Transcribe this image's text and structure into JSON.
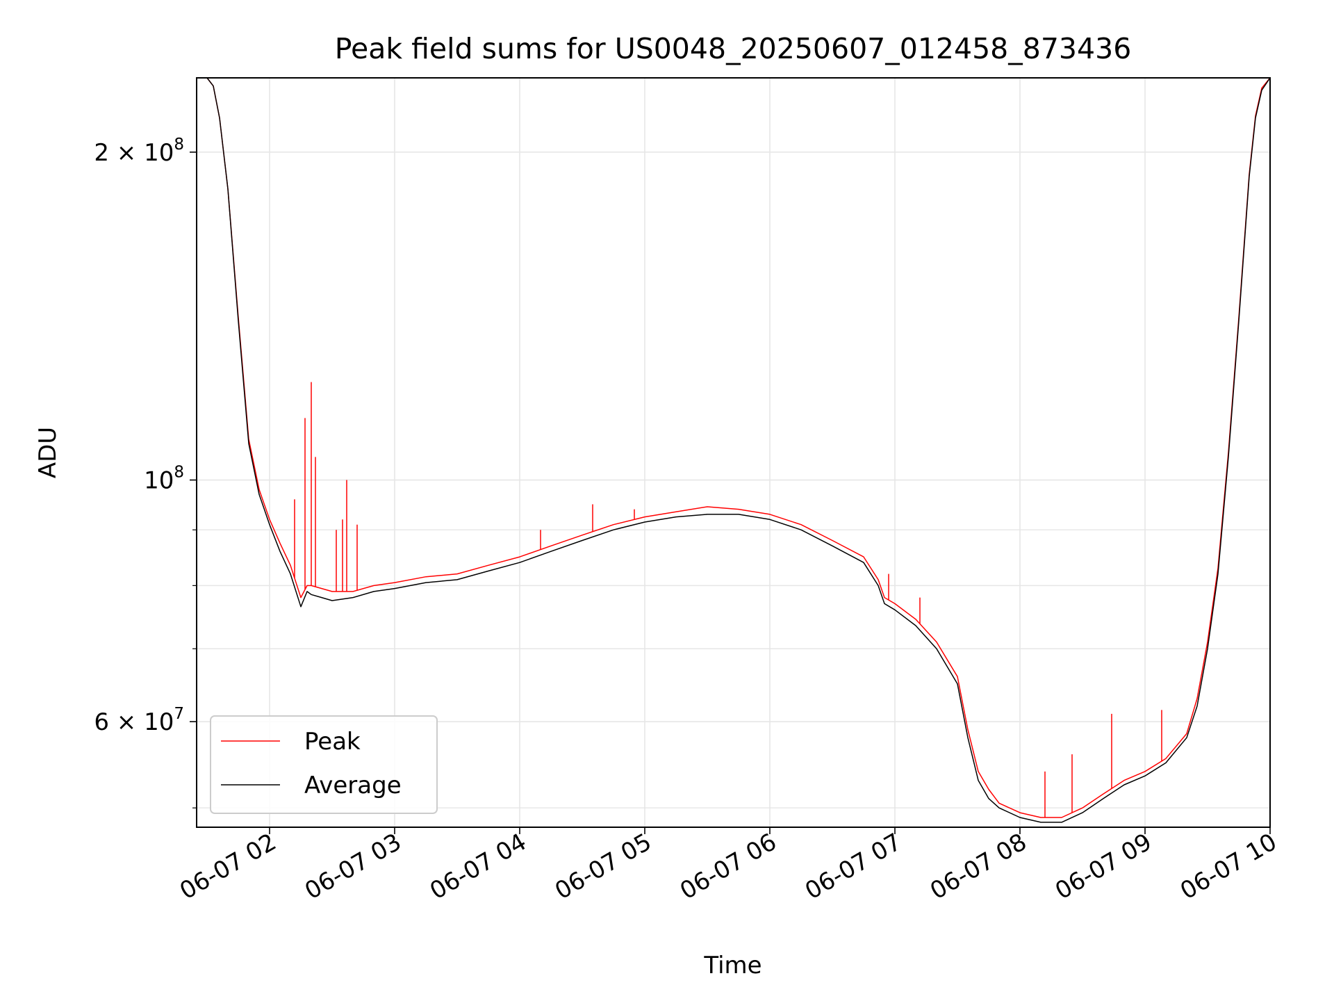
{
  "chart_data": {
    "type": "line",
    "title": "Peak field sums for US0048_20250607_012458_873436",
    "xlabel": "Time",
    "ylabel": "ADU",
    "x_axis": {
      "kind": "time",
      "tick_labels": [
        "06-07 02",
        "06-07 03",
        "06-07 04",
        "06-07 05",
        "06-07 06",
        "06-07 07",
        "06-07 08",
        "06-07 09",
        "06-07 10"
      ],
      "xlim": [
        "2025-06-07 01:25",
        "2025-06-07 10:00"
      ]
    },
    "y_axis": {
      "scale": "log",
      "major_tick_labels": [
        {
          "value": 60000000,
          "mantissa": "6 × 10",
          "exp": "7"
        },
        {
          "value": 100000000,
          "mantissa": "10",
          "exp": "8"
        },
        {
          "value": 200000000,
          "mantissa": "2 × 10",
          "exp": "8"
        }
      ],
      "minor_ticks": [
        50000000,
        70000000,
        80000000,
        90000000
      ],
      "ylim": [
        48000000,
        234000000
      ]
    },
    "grid": true,
    "legend": {
      "location": "lower-left",
      "entries": [
        "Peak",
        "Average"
      ]
    },
    "colors": {
      "Peak": "#ff0000",
      "Average": "#000000"
    },
    "series": [
      {
        "name": "Average",
        "x": [
          "2025-06-07 01:25",
          "2025-06-07 01:30",
          "2025-06-07 01:33",
          "2025-06-07 01:36",
          "2025-06-07 01:40",
          "2025-06-07 01:45",
          "2025-06-07 01:50",
          "2025-06-07 01:55",
          "2025-06-07 02:00",
          "2025-06-07 02:05",
          "2025-06-07 02:10",
          "2025-06-07 02:15",
          "2025-06-07 02:18",
          "2025-06-07 02:20",
          "2025-06-07 02:25",
          "2025-06-07 02:30",
          "2025-06-07 02:40",
          "2025-06-07 02:50",
          "2025-06-07 03:00",
          "2025-06-07 03:15",
          "2025-06-07 03:30",
          "2025-06-07 03:45",
          "2025-06-07 04:00",
          "2025-06-07 04:15",
          "2025-06-07 04:30",
          "2025-06-07 04:45",
          "2025-06-07 05:00",
          "2025-06-07 05:15",
          "2025-06-07 05:30",
          "2025-06-07 05:45",
          "2025-06-07 06:00",
          "2025-06-07 06:15",
          "2025-06-07 06:30",
          "2025-06-07 06:45",
          "2025-06-07 06:52",
          "2025-06-07 06:55",
          "2025-06-07 07:00",
          "2025-06-07 07:10",
          "2025-06-07 07:20",
          "2025-06-07 07:30",
          "2025-06-07 07:35",
          "2025-06-07 07:40",
          "2025-06-07 07:45",
          "2025-06-07 07:50",
          "2025-06-07 08:00",
          "2025-06-07 08:10",
          "2025-06-07 08:20",
          "2025-06-07 08:30",
          "2025-06-07 08:40",
          "2025-06-07 08:50",
          "2025-06-07 09:00",
          "2025-06-07 09:10",
          "2025-06-07 09:20",
          "2025-06-07 09:25",
          "2025-06-07 09:30",
          "2025-06-07 09:35",
          "2025-06-07 09:40",
          "2025-06-07 09:45",
          "2025-06-07 09:50",
          "2025-06-07 09:53",
          "2025-06-07 09:56",
          "2025-06-07 10:00"
        ],
        "y": [
          234000000,
          234000000,
          230000000,
          215000000,
          185000000,
          140000000,
          108000000,
          97000000,
          91000000,
          86000000,
          82000000,
          76500000,
          79000000,
          78500000,
          78000000,
          77500000,
          78000000,
          79000000,
          79500000,
          80500000,
          81000000,
          82500000,
          84000000,
          86000000,
          88000000,
          90000000,
          91500000,
          92500000,
          93000000,
          93000000,
          92000000,
          90000000,
          87000000,
          84000000,
          80000000,
          77000000,
          76000000,
          73500000,
          70000000,
          65000000,
          58000000,
          53000000,
          51000000,
          50000000,
          49000000,
          48500000,
          48500000,
          49500000,
          51000000,
          52500000,
          53500000,
          55000000,
          58000000,
          62000000,
          70000000,
          82000000,
          105000000,
          140000000,
          190000000,
          215000000,
          228000000,
          234000000
        ]
      },
      {
        "name": "Peak",
        "x": [
          "2025-06-07 01:25",
          "2025-06-07 01:30",
          "2025-06-07 01:33",
          "2025-06-07 01:36",
          "2025-06-07 01:40",
          "2025-06-07 01:45",
          "2025-06-07 01:50",
          "2025-06-07 01:55",
          "2025-06-07 02:00",
          "2025-06-07 02:05",
          "2025-06-07 02:10",
          "2025-06-07 02:15",
          "2025-06-07 02:18",
          "2025-06-07 02:20",
          "2025-06-07 02:25",
          "2025-06-07 02:30",
          "2025-06-07 02:40",
          "2025-06-07 02:50",
          "2025-06-07 03:00",
          "2025-06-07 03:15",
          "2025-06-07 03:30",
          "2025-06-07 03:45",
          "2025-06-07 04:00",
          "2025-06-07 04:15",
          "2025-06-07 04:30",
          "2025-06-07 04:45",
          "2025-06-07 05:00",
          "2025-06-07 05:15",
          "2025-06-07 05:30",
          "2025-06-07 05:45",
          "2025-06-07 06:00",
          "2025-06-07 06:15",
          "2025-06-07 06:30",
          "2025-06-07 06:45",
          "2025-06-07 06:52",
          "2025-06-07 06:55",
          "2025-06-07 07:00",
          "2025-06-07 07:10",
          "2025-06-07 07:20",
          "2025-06-07 07:30",
          "2025-06-07 07:35",
          "2025-06-07 07:40",
          "2025-06-07 07:45",
          "2025-06-07 07:50",
          "2025-06-07 08:00",
          "2025-06-07 08:10",
          "2025-06-07 08:20",
          "2025-06-07 08:30",
          "2025-06-07 08:40",
          "2025-06-07 08:50",
          "2025-06-07 09:00",
          "2025-06-07 09:10",
          "2025-06-07 09:20",
          "2025-06-07 09:25",
          "2025-06-07 09:30",
          "2025-06-07 09:35",
          "2025-06-07 09:40",
          "2025-06-07 09:45",
          "2025-06-07 09:50",
          "2025-06-07 09:53",
          "2025-06-07 09:56",
          "2025-06-07 10:00"
        ],
        "y": [
          234000000,
          234000000,
          230000000,
          215000000,
          185000000,
          141000000,
          109000000,
          98000000,
          92000000,
          87500000,
          83500000,
          78000000,
          80000000,
          80000000,
          79500000,
          79000000,
          79000000,
          80000000,
          80500000,
          81500000,
          82000000,
          83500000,
          85000000,
          87000000,
          89000000,
          91000000,
          92500000,
          93500000,
          94500000,
          94000000,
          93000000,
          91000000,
          88000000,
          85000000,
          81000000,
          78000000,
          77000000,
          74500000,
          71000000,
          66000000,
          59000000,
          54000000,
          52000000,
          50500000,
          49500000,
          49000000,
          49000000,
          50000000,
          51500000,
          53000000,
          54000000,
          55500000,
          58500000,
          63000000,
          71000000,
          83000000,
          106000000,
          141000000,
          191000000,
          216000000,
          229000000,
          234000000
        ]
      }
    ],
    "spikes": {
      "series": "Peak",
      "points": [
        {
          "x": "2025-06-07 02:17",
          "y": 114000000
        },
        {
          "x": "2025-06-07 02:20",
          "y": 123000000
        },
        {
          "x": "2025-06-07 02:22",
          "y": 105000000
        },
        {
          "x": "2025-06-07 02:12",
          "y": 96000000
        },
        {
          "x": "2025-06-07 02:37",
          "y": 100000000
        },
        {
          "x": "2025-06-07 02:35",
          "y": 92000000
        },
        {
          "x": "2025-06-07 02:42",
          "y": 91000000
        },
        {
          "x": "2025-06-07 02:32",
          "y": 90000000
        },
        {
          "x": "2025-06-07 04:10",
          "y": 90000000
        },
        {
          "x": "2025-06-07 04:35",
          "y": 95000000
        },
        {
          "x": "2025-06-07 04:55",
          "y": 94000000
        },
        {
          "x": "2025-06-07 06:57",
          "y": 82000000
        },
        {
          "x": "2025-06-07 07:12",
          "y": 78000000
        },
        {
          "x": "2025-06-07 08:12",
          "y": 54000000
        },
        {
          "x": "2025-06-07 08:25",
          "y": 56000000
        },
        {
          "x": "2025-06-07 08:44",
          "y": 61000000
        },
        {
          "x": "2025-06-07 09:08",
          "y": 61500000
        }
      ]
    }
  }
}
